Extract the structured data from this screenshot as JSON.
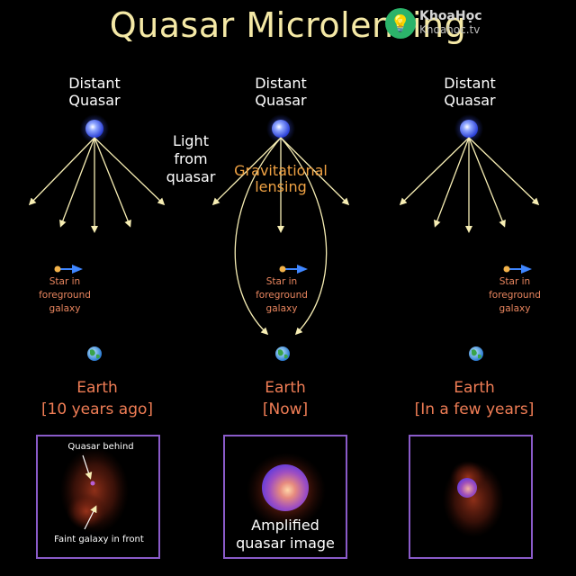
{
  "title": "Quasar Microlensing",
  "watermark": {
    "site": "KhoaHọc",
    "domain": "Khoahoc.tv",
    "icon": "bulb-icon"
  },
  "columns": [
    {
      "header_line1": "Distant",
      "header_line2": "Quasar",
      "star_label_lines": [
        "Star in",
        "foreground",
        "galaxy"
      ],
      "earth_label": "Earth",
      "time_label": "[10 years ago]"
    },
    {
      "header_line1": "Distant",
      "header_line2": "Quasar",
      "star_label_lines": [
        "Star in",
        "foreground",
        "galaxy"
      ],
      "earth_label": "Earth",
      "time_label": "[Now]"
    },
    {
      "header_line1": "Distant",
      "header_line2": "Quasar",
      "star_label_lines": [
        "Star in",
        "foreground",
        "galaxy"
      ],
      "earth_label": "Earth",
      "time_label": "[In a few years]"
    }
  ],
  "light_label": [
    "Light",
    "from",
    "quasar"
  ],
  "lensing_label": [
    "Gravitational",
    "lensing"
  ],
  "panels": {
    "left": {
      "quasar_note": "Quasar behind",
      "galaxy_note": "Faint galaxy in front"
    },
    "middle": {
      "caption_line1": "Amplified",
      "caption_line2": "quasar image"
    }
  },
  "colors": {
    "title": "#f5e9a6",
    "arrow": "#f7eeb4",
    "orange_text": "#f07d55",
    "panel_border": "#8a5bc9",
    "quasar": "#4a6cff"
  }
}
